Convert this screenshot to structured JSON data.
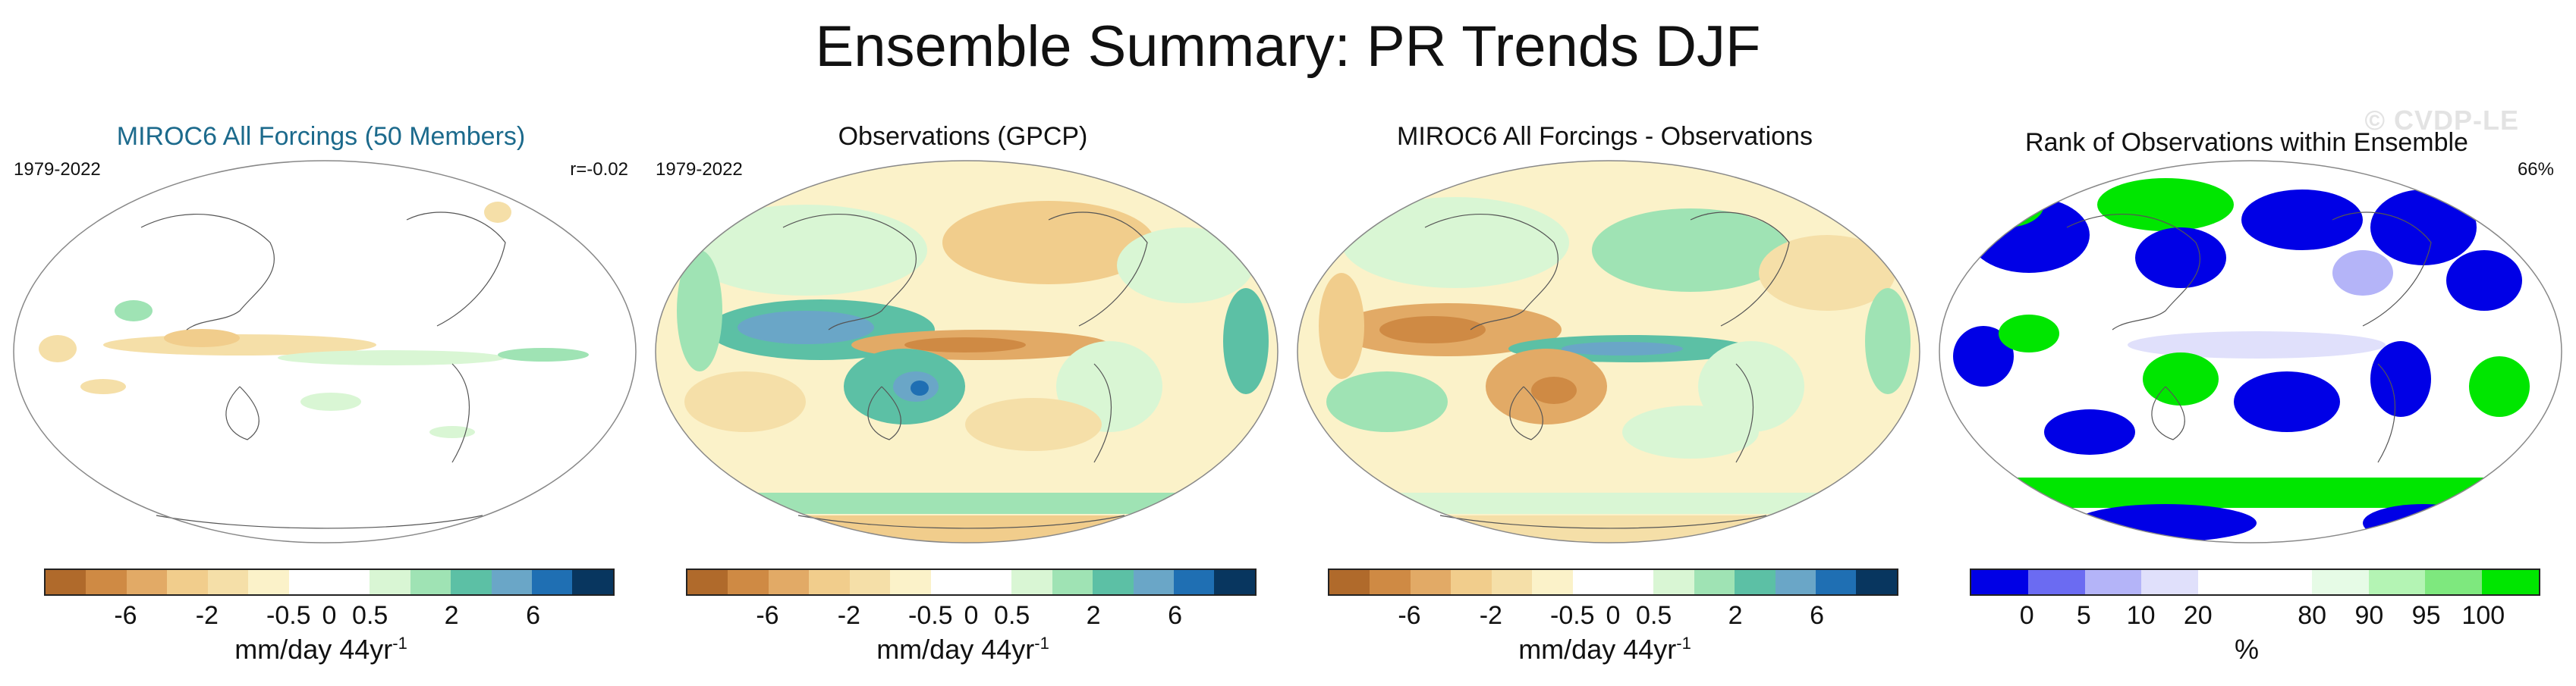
{
  "title": "Ensemble Summary: PR Trends DJF",
  "watermark": "© CVDP-LE",
  "panels": [
    {
      "title": "MIROC6 All Forcings (50 Members)",
      "left_label": "1979-2022",
      "right_label": "r=-0.02",
      "colorbar": {
        "colors": [
          "#b06a2b",
          "#cf8a44",
          "#e2aa66",
          "#f1cd8c",
          "#f5dfa8",
          "#fbf2c9",
          "#ffffff",
          "#ffffff",
          "#d9f6d4",
          "#9fe3b4",
          "#5cc0a5",
          "#6aa6c7",
          "#1f6fb3",
          "#08365f"
        ],
        "ticks": [
          "-6",
          "-2",
          "-0.5",
          "0",
          "0.5",
          "2",
          "6"
        ],
        "label": "mm/day 44yr",
        "label_sup": "-1"
      }
    },
    {
      "title": "Observations (GPCP)",
      "left_label": "1979-2022",
      "right_label": "",
      "colorbar": {
        "colors": [
          "#b06a2b",
          "#cf8a44",
          "#e2aa66",
          "#f1cd8c",
          "#f5dfa8",
          "#fbf2c9",
          "#ffffff",
          "#ffffff",
          "#d9f6d4",
          "#9fe3b4",
          "#5cc0a5",
          "#6aa6c7",
          "#1f6fb3",
          "#08365f"
        ],
        "ticks": [
          "-6",
          "-2",
          "-0.5",
          "0",
          "0.5",
          "2",
          "6"
        ],
        "label": "mm/day 44yr",
        "label_sup": "-1"
      }
    },
    {
      "title": "MIROC6 All Forcings - Observations",
      "left_label": "",
      "right_label": "",
      "colorbar": {
        "colors": [
          "#b06a2b",
          "#cf8a44",
          "#e2aa66",
          "#f1cd8c",
          "#f5dfa8",
          "#fbf2c9",
          "#ffffff",
          "#ffffff",
          "#d9f6d4",
          "#9fe3b4",
          "#5cc0a5",
          "#6aa6c7",
          "#1f6fb3",
          "#08365f"
        ],
        "ticks": [
          "-6",
          "-2",
          "-0.5",
          "0",
          "0.5",
          "2",
          "6"
        ],
        "label": "mm/day 44yr",
        "label_sup": "-1"
      }
    },
    {
      "title": "Rank of Observations within Ensemble",
      "left_label": "",
      "right_label": "66%",
      "colorbar": {
        "colors": [
          "#0000e6",
          "#6b6bf2",
          "#b4b4f8",
          "#e0e0fb",
          "#ffffff",
          "#ffffff",
          "#e6fbe6",
          "#b4f4b4",
          "#7ee87e",
          "#00e600"
        ],
        "ticks": [
          "0",
          "5",
          "10",
          "20",
          "80",
          "90",
          "95",
          "100"
        ],
        "label": "%",
        "label_sup": ""
      }
    }
  ]
}
